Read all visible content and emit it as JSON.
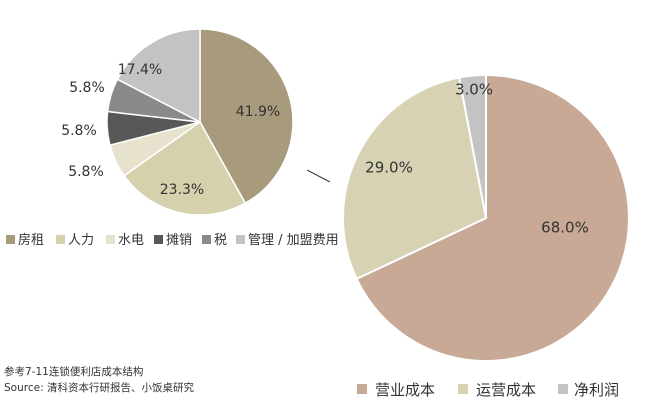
{
  "colors": {
    "rent": "#a89a7c",
    "labor": "#d4d1ac",
    "utilities": "#e6e2cd",
    "amortization": "#585858",
    "tax": "#8a8a8a",
    "management": "#c3c3c3",
    "operating_cost": "#c8a995",
    "running_cost": "#d7d2b4",
    "net_profit": "#c3c3c3",
    "connector": "#444444",
    "white": "#ffffff"
  },
  "chart_data": [
    {
      "type": "pie",
      "labels": [
        "房租",
        "人力",
        "水电",
        "摊销",
        "税",
        "管理 / 加盟费用"
      ],
      "values": [
        41.9,
        23.3,
        5.8,
        5.8,
        5.8,
        17.4
      ],
      "value_labels": [
        "41.9%",
        "23.3%",
        "5.8%",
        "5.8%",
        "5.8%",
        "17.4%"
      ],
      "legend": "bottom"
    },
    {
      "type": "pie",
      "labels": [
        "营业成本",
        "运营成本",
        "净利润"
      ],
      "values": [
        68.0,
        29.0,
        3.0
      ],
      "value_labels": [
        "68.0%",
        "29.0%",
        "3.0%"
      ],
      "legend": "bottom"
    }
  ],
  "legend_small": [
    "房租",
    "人力",
    "水电",
    "摊销",
    "税",
    "管理 / 加盟费用"
  ],
  "legend_big": [
    "营业成本",
    "运营成本",
    "净利润"
  ],
  "footer": {
    "caption": "参考7-11连锁便利店成本结构",
    "source": "Source: 清科资本行研报告、小饭桌研究"
  }
}
